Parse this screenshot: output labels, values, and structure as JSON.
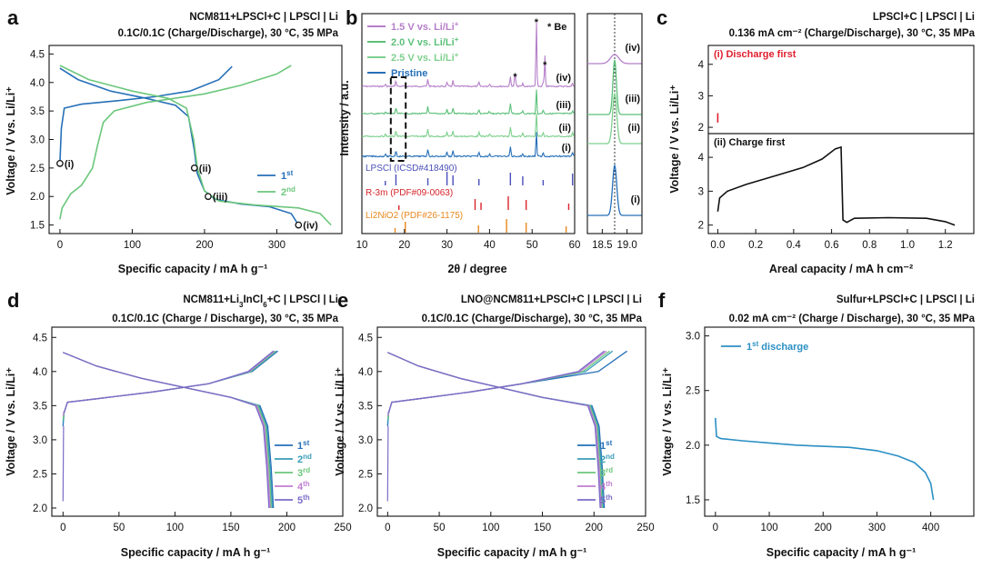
{
  "chart_data": [
    {
      "panel": "a",
      "type": "line",
      "title": "NCM811+LPSCl+C | LPSCl | Li",
      "subtitle": "0.1C/0.1C (Charge/Discharge), 30 °C, 35 MPa",
      "xlabel": "Specific capacity / mA h g⁻¹",
      "ylabel": "Voltage / V vs. Li/Li⁺",
      "xlim": [
        -15,
        390
      ],
      "ylim": [
        1.35,
        4.65
      ],
      "xticks": [
        "0",
        "100",
        "200",
        "300"
      ],
      "yticks": [
        "1.5",
        "2.0",
        "2.5",
        "3.0",
        "3.5",
        "4.0",
        "4.5"
      ],
      "series": [
        {
          "name": "1st",
          "color": "#2670b8",
          "charge": [
            [
              0,
              2.6
            ],
            [
              2,
              3.2
            ],
            [
              6,
              3.55
            ],
            [
              30,
              3.62
            ],
            [
              80,
              3.68
            ],
            [
              130,
              3.75
            ],
            [
              180,
              3.85
            ],
            [
              220,
              4.05
            ],
            [
              238,
              4.28
            ]
          ],
          "discharge": [
            [
              0,
              4.25
            ],
            [
              25,
              4.05
            ],
            [
              70,
              3.85
            ],
            [
              120,
              3.72
            ],
            [
              160,
              3.6
            ],
            [
              178,
              3.4
            ],
            [
              186,
              2.8
            ],
            [
              190,
              2.4
            ],
            [
              200,
              2.1
            ],
            [
              215,
              1.95
            ],
            [
              250,
              1.87
            ],
            [
              290,
              1.82
            ],
            [
              320,
              1.7
            ],
            [
              330,
              1.5
            ]
          ]
        },
        {
          "name": "2nd",
          "color": "#6cc77c",
          "charge": [
            [
              0,
              1.6
            ],
            [
              3,
              1.8
            ],
            [
              15,
              2.05
            ],
            [
              30,
              2.2
            ],
            [
              45,
              2.5
            ],
            [
              52,
              2.9
            ],
            [
              60,
              3.3
            ],
            [
              75,
              3.5
            ],
            [
              120,
              3.65
            ],
            [
              200,
              3.8
            ],
            [
              250,
              3.95
            ],
            [
              300,
              4.15
            ],
            [
              320,
              4.3
            ]
          ],
          "discharge": [
            [
              0,
              4.3
            ],
            [
              40,
              4.05
            ],
            [
              100,
              3.85
            ],
            [
              150,
              3.72
            ],
            [
              175,
              3.55
            ],
            [
              185,
              3.0
            ],
            [
              190,
              2.5
            ],
            [
              200,
              2.1
            ],
            [
              220,
              1.92
            ],
            [
              270,
              1.85
            ],
            [
              330,
              1.8
            ],
            [
              360,
              1.7
            ],
            [
              375,
              1.5
            ]
          ]
        }
      ],
      "markers": [
        {
          "label": "(i)",
          "x": 0,
          "y": 2.58
        },
        {
          "label": "(ii)",
          "x": 186,
          "y": 2.5
        },
        {
          "label": "(iii)",
          "x": 205,
          "y": 2.0
        },
        {
          "label": "(iv)",
          "x": 330,
          "y": 1.5
        }
      ],
      "legend": {
        "position": "right",
        "entries": [
          {
            "base": "1",
            "sup": "st"
          },
          {
            "base": "2",
            "sup": "nd"
          }
        ]
      }
    },
    {
      "panel": "b",
      "type": "line",
      "xlabel": "2θ / degree",
      "ylabel": "Intensity / a.u.",
      "xlim": [
        10,
        60
      ],
      "xticks": [
        "10",
        "20",
        "30",
        "40",
        "50",
        "60"
      ],
      "legend_entries": [
        {
          "text": "1.5 V vs. Li/Li",
          "sup": "+",
          "color": "#b57fc9"
        },
        {
          "text": "2.0 V vs. Li/Li",
          "sup": "+",
          "color": "#5cc07a"
        },
        {
          "text": "2.5 V vs. Li/Li",
          "sup": "+",
          "color": "#7ed08e"
        },
        {
          "text": "Pristine",
          "sup": "",
          "color": "#2670b8"
        }
      ],
      "be_note": "* Be",
      "traces": [
        {
          "label": "(iv)",
          "color": "#b57fc9",
          "offset": 4.7
        },
        {
          "label": "(iii)",
          "color": "#5cc07a",
          "offset": 3.25
        },
        {
          "label": "(ii)",
          "color": "#7ed08e",
          "offset": 1.9
        },
        {
          "label": "(i)",
          "color": "#2670b8",
          "offset": 0.55
        }
      ],
      "reference_patterns": [
        {
          "name": "LPSCl (ICSD#418490)",
          "color": "#4a4fb8",
          "peaks": [
            15.5,
            18.0,
            25.5,
            30.0,
            31.4,
            37.5,
            44.9,
            47.8,
            52.6,
            59.5
          ]
        },
        {
          "name": "R-3m (PDF#09-0063)",
          "color": "#d8242a",
          "peaks": [
            18.7,
            36.6,
            38.0,
            44.4,
            48.6,
            58.6
          ]
        },
        {
          "name": "Li2NiO2 (PDF#26-1175)",
          "color": "#e8871e",
          "peaks": [
            17.8,
            20.2,
            37.4,
            44.0,
            48.6,
            58.0
          ]
        }
      ],
      "inset": {
        "xlim": [
          18.2,
          19.3
        ],
        "xticks": [
          "18.5",
          "19.0"
        ],
        "dotted_line_x": 18.75
      }
    },
    {
      "panel": "c",
      "type": "line",
      "title": "LPSCl+C | LPSCl | Li",
      "subtitle": "0.136 mA cm⁻² (Charge/Discharge), 30 °C, 35 MPa",
      "xlabel": "Areal capacity / mA h cm⁻²",
      "ylabel": "Voltage / V vs. Li/Li⁺",
      "xlim": [
        -0.05,
        1.35
      ],
      "xticks": [
        "0.0",
        "0.2",
        "0.4",
        "0.6",
        "0.8",
        "1.0",
        "1.2"
      ],
      "subpanels": [
        {
          "label": "(i) Discharge first",
          "label_color": "#e02030",
          "ylim": [
            1.8,
            4.6
          ],
          "yticks": [
            "2",
            "3",
            "4"
          ],
          "points": [
            [
              0.0,
              2.45
            ],
            [
              0.0,
              2.15
            ]
          ],
          "color": "#e02030"
        },
        {
          "label": "(ii) Charge first",
          "label_color": "#111111",
          "ylim": [
            1.75,
            4.7
          ],
          "yticks": [
            "2",
            "3",
            "4"
          ],
          "points": [
            [
              0.0,
              2.4
            ],
            [
              0.01,
              2.8
            ],
            [
              0.05,
              3.0
            ],
            [
              0.15,
              3.2
            ],
            [
              0.3,
              3.45
            ],
            [
              0.45,
              3.7
            ],
            [
              0.55,
              3.95
            ],
            [
              0.62,
              4.25
            ],
            [
              0.65,
              4.3
            ],
            [
              0.66,
              2.15
            ],
            [
              0.68,
              2.08
            ],
            [
              0.72,
              2.2
            ],
            [
              0.9,
              2.22
            ],
            [
              1.1,
              2.2
            ],
            [
              1.2,
              2.1
            ],
            [
              1.25,
              2.0
            ]
          ],
          "color": "#111111"
        }
      ]
    },
    {
      "panel": "d",
      "type": "line",
      "title_parts": [
        "NCM811+Li",
        "3",
        "InCl",
        "6",
        "+C | LPSCl | Li"
      ],
      "subtitle": "0.1C/0.1C (Charge / Discharge), 30 °C, 35 MPa",
      "xlabel": "Specific capacity / mA h g⁻¹",
      "ylabel": "Voltage / V vs. Li/Li⁺",
      "xlim": [
        -10,
        250
      ],
      "ylim": [
        1.88,
        4.65
      ],
      "xticks": [
        "0",
        "50",
        "100",
        "150",
        "200",
        "250"
      ],
      "yticks": [
        "2.0",
        "2.5",
        "3.0",
        "3.5",
        "4.0",
        "4.5"
      ],
      "cap_end": [
        192,
        191,
        190,
        189,
        188
      ],
      "discharge_end": [
        188,
        187,
        186,
        185,
        184
      ],
      "legend": [
        {
          "base": "1",
          "sup": "st",
          "color": "#2670b8"
        },
        {
          "base": "2",
          "sup": "nd",
          "color": "#3a9db8"
        },
        {
          "base": "3",
          "sup": "rd",
          "color": "#6cc77c"
        },
        {
          "base": "4",
          "sup": "th",
          "color": "#c07ed0"
        },
        {
          "base": "5",
          "sup": "th",
          "color": "#7c6cc8"
        }
      ]
    },
    {
      "panel": "e",
      "type": "line",
      "title": "LNO@NCM811+LPSCl+C | LPSCl | Li",
      "subtitle": "0.1C/0.1C (Charge/Discharge), 30 °C, 35 MPa",
      "xlabel": "Specific capacity / mA h g⁻¹",
      "ylabel": "Voltage / V vs. Li/Li⁺",
      "xlim": [
        -10,
        250
      ],
      "ylim": [
        1.88,
        4.65
      ],
      "xticks": [
        "0",
        "50",
        "100",
        "150",
        "200",
        "250"
      ],
      "yticks": [
        "2.0",
        "2.5",
        "3.0",
        "3.5",
        "4.0",
        "4.5"
      ],
      "cap_end": [
        232,
        218,
        215,
        212,
        210
      ],
      "discharge_end": [
        210,
        209,
        208,
        207,
        206
      ],
      "legend": [
        {
          "base": "1",
          "sup": "st",
          "color": "#2670b8"
        },
        {
          "base": "2",
          "sup": "nd",
          "color": "#3a9db8"
        },
        {
          "base": "3",
          "sup": "rd",
          "color": "#6cc77c"
        },
        {
          "base": "4",
          "sup": "th",
          "color": "#c07ed0"
        },
        {
          "base": "5",
          "sup": "th",
          "color": "#7c6cc8"
        }
      ]
    },
    {
      "panel": "f",
      "type": "line",
      "title": "Sulfur+LPSCl+C | LPSCl | Li",
      "subtitle": "0.02 mA cm⁻² (Charge / Discharge), 30 °C, 35 MPa",
      "xlabel": "Specific capacity / mA h g⁻¹",
      "ylabel": "Voltage / V vs. Li/Li⁺",
      "xlim": [
        -20,
        480
      ],
      "ylim": [
        1.35,
        3.08
      ],
      "xticks": [
        "0",
        "100",
        "200",
        "300",
        "400"
      ],
      "yticks": [
        "1.5",
        "2.0",
        "2.5",
        "3.0"
      ],
      "series": [
        {
          "name_base": "1",
          "name_sup": "st",
          "name_rest": " discharge",
          "color": "#2b8fc4",
          "points": [
            [
              0,
              2.25
            ],
            [
              2,
              2.08
            ],
            [
              10,
              2.06
            ],
            [
              50,
              2.04
            ],
            [
              100,
              2.02
            ],
            [
              150,
              2.0
            ],
            [
              200,
              1.99
            ],
            [
              250,
              1.98
            ],
            [
              300,
              1.95
            ],
            [
              340,
              1.9
            ],
            [
              370,
              1.84
            ],
            [
              390,
              1.75
            ],
            [
              400,
              1.65
            ],
            [
              405,
              1.5
            ]
          ]
        }
      ]
    }
  ]
}
